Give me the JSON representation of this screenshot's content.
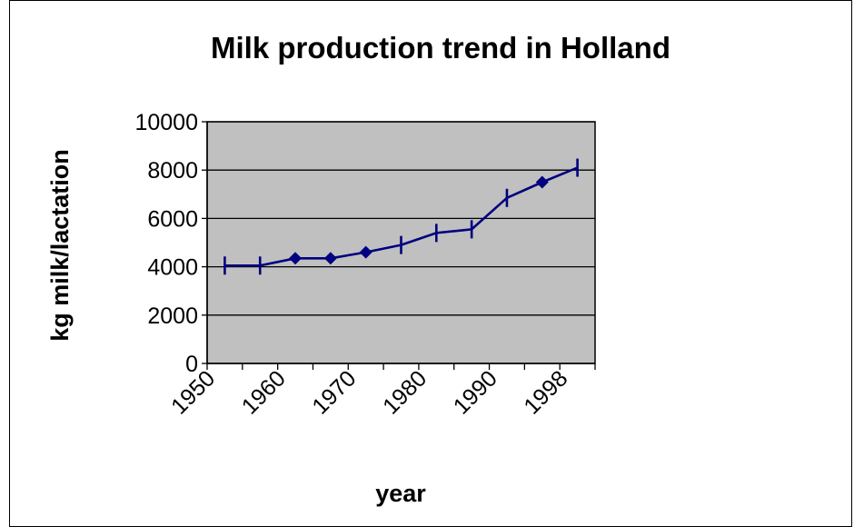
{
  "chart_data": {
    "type": "line",
    "title": "Milk production trend in Holland",
    "xlabel": "year",
    "ylabel": "kg milk/lactation",
    "categories": [
      "1950",
      "",
      "1960",
      "",
      "1970",
      "",
      "1980",
      "",
      "1990",
      "",
      "1998"
    ],
    "x_tick_labels": [
      "1950",
      "1960",
      "1970",
      "1980",
      "1990",
      "1998"
    ],
    "series": [
      {
        "values": [
          4050,
          4050,
          4350,
          4350,
          4600,
          4900,
          5400,
          5550,
          6850,
          7500,
          8100
        ],
        "markers": [
          "dash",
          "dash",
          "diamond",
          "diamond",
          "diamond",
          "dash",
          "dash",
          "dash",
          "dash",
          "diamond",
          "dash"
        ]
      }
    ],
    "ylim": [
      0,
      10000
    ],
    "y_ticks": [
      0,
      2000,
      4000,
      6000,
      8000,
      10000
    ],
    "grid": true,
    "colors": {
      "line": "#000080",
      "plot_background": "#c0c0c0",
      "gridline": "#000000"
    }
  }
}
